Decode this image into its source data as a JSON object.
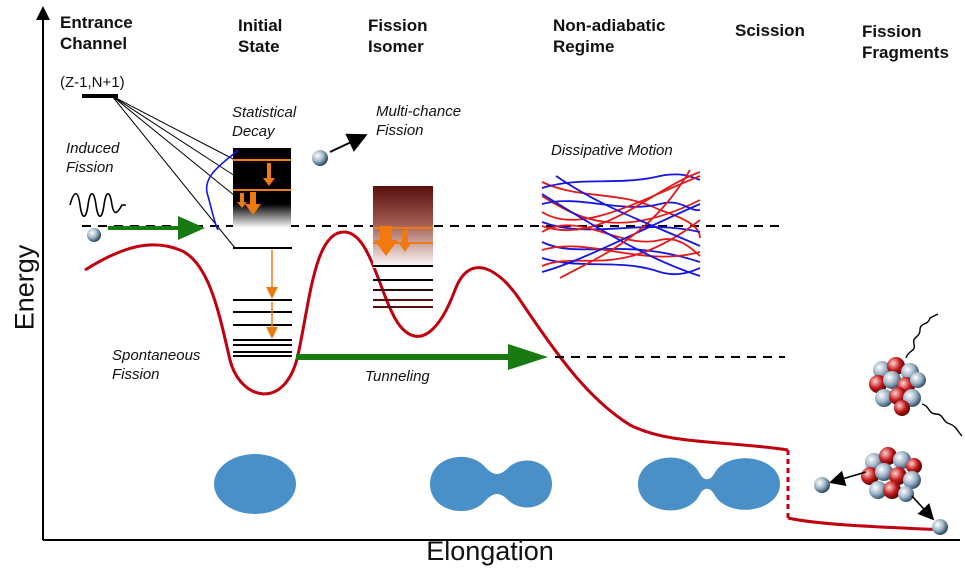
{
  "headers": {
    "entrance": "Entrance\nChannel",
    "initial": "Initial\nState",
    "isomer": "Fission\nIsomer",
    "nonadiabatic": "Non-adiabatic\nRegime",
    "scission": "Scission",
    "fragments": "Fission\nFragments"
  },
  "notes": {
    "state_label": "(Z-1,N+1)",
    "statistical_decay": "Statistical\nDecay",
    "multichance": "Multi-chance\nFission",
    "induced": "Induced\nFission",
    "dissipative": "Dissipative Motion",
    "spontaneous": "Spontaneous\nFission",
    "tunneling": "Tunneling"
  },
  "axes": {
    "y": "Energy",
    "x": "Elongation"
  },
  "colors": {
    "barrier_curve": "#c0000e",
    "arrow_green": "#1a7a12",
    "shape_blue": "#4a90c8",
    "orange": "#f07a10",
    "red_line": "#e31a1a",
    "blue_line": "#1616e0"
  }
}
